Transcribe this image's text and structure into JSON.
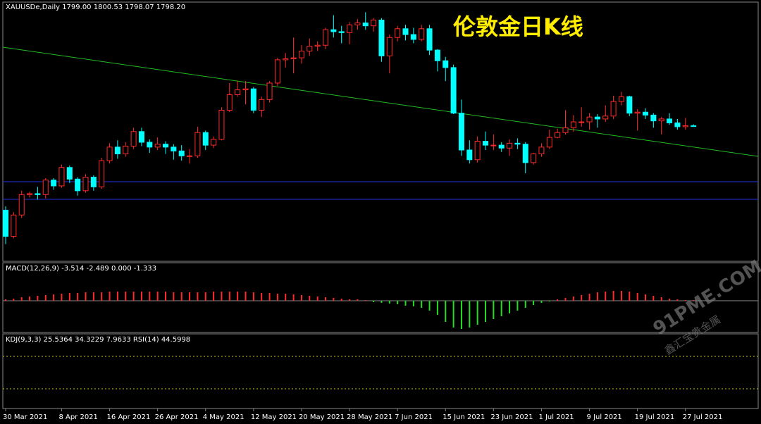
{
  "chart_data": [
    {
      "type": "candlestick",
      "title": "伦敦金日K线",
      "info_label": "XAUUSDe,Daily  1799.00 1800.53 1798.07 1798.20",
      "up_color": "#ff2a2a",
      "down_color": "#00ffff",
      "ylim": [
        1660,
        1925
      ],
      "categories": [
        "30 Mar 2021",
        null,
        null,
        null,
        null,
        null,
        null,
        "8 Apr 2021",
        null,
        null,
        null,
        null,
        null,
        "16 Apr 2021",
        null,
        null,
        null,
        null,
        null,
        "26 Apr 2021",
        null,
        null,
        null,
        null,
        null,
        "4 May 2021",
        null,
        null,
        null,
        null,
        null,
        "12 May 2021",
        null,
        null,
        null,
        null,
        null,
        "20 May 2021",
        null,
        null,
        null,
        null,
        null,
        "28 May 2021",
        null,
        null,
        null,
        null,
        null,
        "7 Jun 2021",
        null,
        null,
        null,
        null,
        null,
        "15 Jun 2021",
        null,
        null,
        null,
        null,
        null,
        "23 Jun 2021",
        null,
        null,
        null,
        null,
        null,
        "1 Jul 2021",
        null,
        null,
        null,
        null,
        null,
        "9 Jul 2021",
        null,
        null,
        null,
        null,
        null,
        "19 Jul 2021",
        null,
        null,
        null,
        null,
        null,
        "27 Jul 2021",
        null
      ],
      "open": [
        1712,
        1685,
        1707,
        1728,
        1729,
        1728,
        1743,
        1737,
        1756,
        1744,
        1732,
        1746,
        1736,
        1763,
        1777,
        1770,
        1778,
        1793,
        1782,
        1777,
        1780,
        1777,
        1773,
        1768,
        1768,
        1792,
        1779,
        1785,
        1815,
        1831,
        1836,
        1837,
        1815,
        1826,
        1843,
        1867,
        1868,
        1869,
        1876,
        1881,
        1882,
        1898,
        1896,
        1895,
        1903,
        1905,
        1902,
        1908,
        1871,
        1890,
        1899,
        1893,
        1888,
        1899,
        1877,
        1866,
        1859,
        1812,
        1774,
        1764,
        1783,
        1779,
        1779,
        1776,
        1781,
        1780,
        1761,
        1770,
        1777,
        1787,
        1792,
        1797,
        1803,
        1803,
        1808,
        1806,
        1809,
        1824,
        1829,
        1812,
        1813,
        1810,
        1804,
        1806,
        1802,
        1798,
        1799
      ],
      "high": [
        1716,
        1710,
        1732,
        1731,
        1736,
        1745,
        1745,
        1759,
        1758,
        1746,
        1749,
        1748,
        1766,
        1781,
        1784,
        1782,
        1797,
        1797,
        1785,
        1787,
        1783,
        1780,
        1779,
        1775,
        1798,
        1794,
        1788,
        1818,
        1843,
        1845,
        1845,
        1839,
        1829,
        1845,
        1869,
        1874,
        1890,
        1882,
        1889,
        1886,
        1900,
        1913,
        1902,
        1906,
        1909,
        1916,
        1910,
        1910,
        1893,
        1902,
        1903,
        1900,
        1903,
        1903,
        1878,
        1870,
        1862,
        1826,
        1784,
        1788,
        1793,
        1790,
        1782,
        1785,
        1786,
        1782,
        1771,
        1781,
        1795,
        1796,
        1815,
        1810,
        1818,
        1812,
        1811,
        1820,
        1830,
        1834,
        1830,
        1816,
        1817,
        1812,
        1808,
        1812,
        1806,
        1807,
        1800.53
      ],
      "low": [
        1677,
        1683,
        1704,
        1725,
        1723,
        1724,
        1733,
        1735,
        1740,
        1727,
        1730,
        1732,
        1734,
        1760,
        1765,
        1767,
        1775,
        1778,
        1771,
        1774,
        1770,
        1764,
        1763,
        1760,
        1766,
        1774,
        1776,
        1784,
        1813,
        1829,
        1821,
        1812,
        1808,
        1823,
        1840,
        1859,
        1853,
        1863,
        1871,
        1876,
        1878,
        1890,
        1884,
        1883,
        1898,
        1898,
        1896,
        1865,
        1853,
        1886,
        1887,
        1884,
        1886,
        1872,
        1855,
        1845,
        1811,
        1768,
        1760,
        1761,
        1774,
        1774,
        1772,
        1768,
        1775,
        1750,
        1759,
        1767,
        1775,
        1786,
        1790,
        1793,
        1798,
        1795,
        1797,
        1803,
        1806,
        1820,
        1809,
        1794,
        1806,
        1797,
        1790,
        1800,
        1795,
        1795,
        1798.07
      ],
      "close": [
        1685,
        1707,
        1728,
        1729,
        1728,
        1743,
        1737,
        1756,
        1744,
        1732,
        1746,
        1736,
        1763,
        1777,
        1770,
        1778,
        1793,
        1782,
        1777,
        1780,
        1777,
        1773,
        1768,
        1768,
        1792,
        1779,
        1785,
        1815,
        1831,
        1836,
        1837,
        1815,
        1826,
        1843,
        1867,
        1868,
        1869,
        1876,
        1881,
        1882,
        1898,
        1896,
        1895,
        1903,
        1905,
        1902,
        1908,
        1871,
        1890,
        1899,
        1893,
        1888,
        1899,
        1877,
        1866,
        1859,
        1812,
        1774,
        1764,
        1783,
        1779,
        1779,
        1776,
        1781,
        1780,
        1761,
        1770,
        1777,
        1787,
        1792,
        1797,
        1803,
        1803,
        1808,
        1806,
        1809,
        1824,
        1829,
        1812,
        1813,
        1810,
        1804,
        1806,
        1802,
        1798,
        1799,
        1798.2
      ]
    },
    {
      "type": "bar",
      "title": "MACD(12,26,9) -3.514 -2.489 0.000 -1.333",
      "pos_color": "#ff2a2a",
      "neg_color": "#22dd22",
      "ylim": [
        -43,
        53
      ],
      "values": [
        2,
        3,
        5,
        6,
        7,
        8,
        9,
        10,
        11,
        11,
        12,
        12,
        12,
        13,
        13,
        13,
        13,
        13,
        13,
        13,
        13,
        12,
        12,
        12,
        12,
        12,
        13,
        13,
        13,
        13,
        13,
        12,
        11,
        11,
        10,
        10,
        9,
        8,
        7,
        6,
        5,
        4,
        3,
        2,
        2,
        1,
        -2,
        -3,
        -4,
        -5,
        -7,
        -8,
        -10,
        -14,
        -20,
        -30,
        -38,
        -40,
        -38,
        -34,
        -30,
        -26,
        -22,
        -18,
        -14,
        -10,
        -6,
        -3,
        -1,
        2,
        4,
        6,
        8,
        10,
        12,
        13,
        14,
        14,
        13,
        11,
        9,
        7,
        5,
        3,
        2,
        1,
        1
      ]
    },
    {
      "type": "panel",
      "title": "KDJ(9,3,3) 25.5364 34.3229 7.9633  RSI(14) 44.5998"
    }
  ],
  "watermark": "91PME.COM",
  "watermark_sub": "鑫汇宝贵金属"
}
